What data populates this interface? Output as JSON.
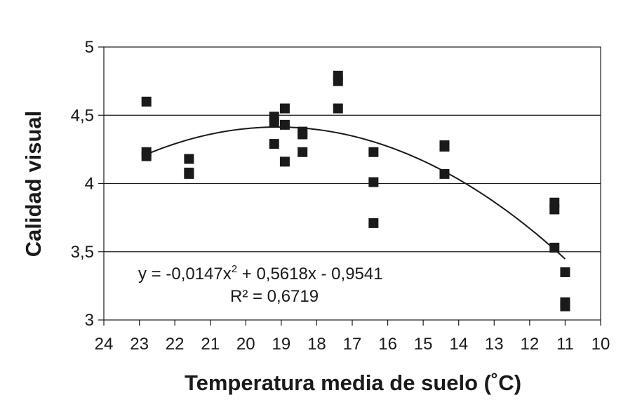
{
  "chart_data": {
    "type": "scatter",
    "xlabel": "Temperatura media de suelo (˚C)",
    "ylabel": "Calidad visual",
    "xlim": [
      24,
      10
    ],
    "ylim": [
      3,
      5
    ],
    "x_reversed": true,
    "x_ticks": [
      "24",
      "23",
      "22",
      "21",
      "20",
      "19",
      "18",
      "17",
      "16",
      "15",
      "14",
      "13",
      "12",
      "11",
      "10"
    ],
    "y_ticks": [
      "3",
      "3,5",
      "4",
      "4,5",
      "5"
    ],
    "gridlines": "horizontal",
    "marker": "square",
    "color": "#1a1a1a",
    "points": [
      {
        "x": 22.8,
        "y": 4.6
      },
      {
        "x": 22.8,
        "y": 4.23
      },
      {
        "x": 22.8,
        "y": 4.2
      },
      {
        "x": 21.6,
        "y": 4.18
      },
      {
        "x": 21.6,
        "y": 4.07
      },
      {
        "x": 21.6,
        "y": 4.08
      },
      {
        "x": 19.2,
        "y": 4.49
      },
      {
        "x": 19.2,
        "y": 4.45
      },
      {
        "x": 19.2,
        "y": 4.29
      },
      {
        "x": 18.9,
        "y": 4.55
      },
      {
        "x": 18.9,
        "y": 4.43
      },
      {
        "x": 18.9,
        "y": 4.16
      },
      {
        "x": 18.4,
        "y": 4.38
      },
      {
        "x": 18.4,
        "y": 4.36
      },
      {
        "x": 18.4,
        "y": 4.23
      },
      {
        "x": 17.4,
        "y": 4.79
      },
      {
        "x": 17.4,
        "y": 4.75
      },
      {
        "x": 17.4,
        "y": 4.55
      },
      {
        "x": 16.4,
        "y": 4.23
      },
      {
        "x": 16.4,
        "y": 4.01
      },
      {
        "x": 16.4,
        "y": 3.71
      },
      {
        "x": 14.4,
        "y": 4.28
      },
      {
        "x": 14.4,
        "y": 4.27
      },
      {
        "x": 14.4,
        "y": 4.07
      },
      {
        "x": 11.3,
        "y": 3.86
      },
      {
        "x": 11.3,
        "y": 3.81
      },
      {
        "x": 11.3,
        "y": 3.53
      },
      {
        "x": 11.0,
        "y": 3.35
      },
      {
        "x": 11.0,
        "y": 3.13
      },
      {
        "x": 11.0,
        "y": 3.1
      }
    ],
    "trendline": {
      "type": "polynomial",
      "coefficients": {
        "a": -0.0147,
        "b": 0.5618,
        "c": -0.9541
      },
      "x_range": [
        22.8,
        11.0
      ],
      "equation_label": "y = -0,0147x",
      "equation_sup": "2",
      "equation_rest": " + 0,5618x - 0,9541",
      "r2_label": "R² = 0,6719"
    }
  }
}
